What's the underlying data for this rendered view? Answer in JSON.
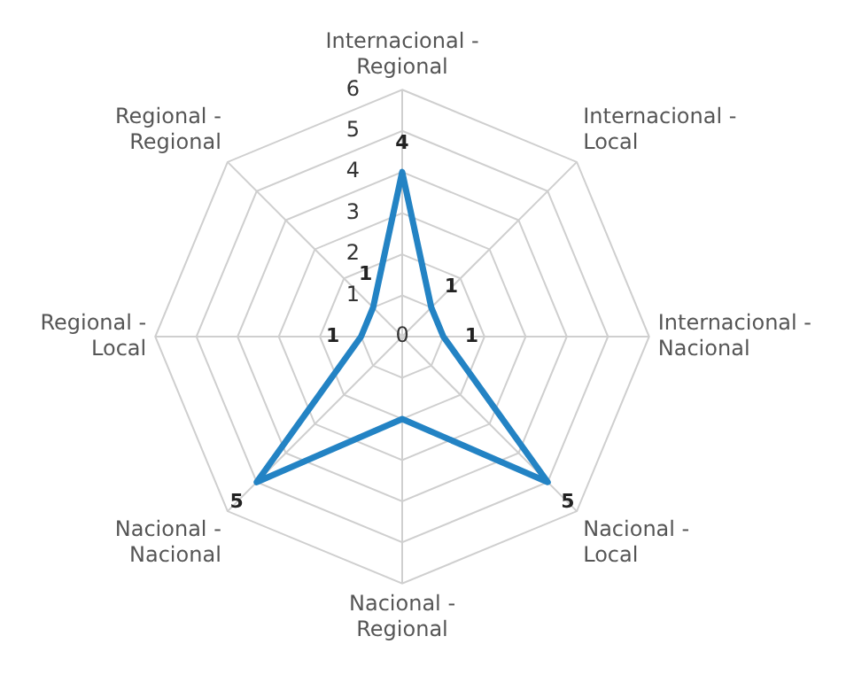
{
  "chart_data": {
    "type": "radar",
    "categories": [
      "Internacional - Regional",
      "Internacional - Local",
      "Internacional - Nacional",
      "Nacional - Local",
      "Nacional - Regional",
      "Nacional - Nacional",
      "Regional - Local",
      "Regional - Regional"
    ],
    "series": [
      {
        "color": "#2383c4",
        "values": [
          4,
          1,
          1,
          5,
          2,
          5,
          1,
          1
        ],
        "value_labels": [
          "4",
          "1",
          "1",
          "5",
          null,
          "5",
          "1",
          "1"
        ]
      }
    ],
    "ylim": [
      0,
      6
    ],
    "yticks": [
      0,
      1,
      2,
      3,
      4,
      5,
      6
    ],
    "grid": true,
    "legend": false,
    "marker": "none"
  }
}
